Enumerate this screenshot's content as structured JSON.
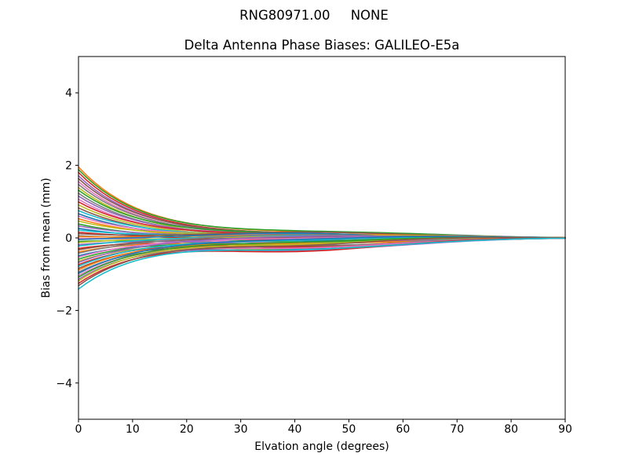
{
  "chart_data": {
    "type": "line",
    "suptitle": "RNG80971.00     NONE",
    "title": "Delta Antenna Phase Biases: GALILEO-E5a",
    "xlabel": "Elvation angle (degrees)",
    "ylabel": "Bias from mean (mm)",
    "xlim": [
      0,
      90
    ],
    "ylim": [
      -5,
      5
    ],
    "xticks": [
      0,
      10,
      20,
      30,
      40,
      50,
      60,
      70,
      80,
      90
    ],
    "xticklabels": [
      "0",
      "10",
      "20",
      "30",
      "40",
      "50",
      "60",
      "70",
      "80",
      "90"
    ],
    "yticks": [
      -4,
      -2,
      0,
      2,
      4
    ],
    "yticklabels": [
      "−4",
      "−2",
      "0",
      "2",
      "4"
    ],
    "grid": false,
    "legend": "none",
    "background": "#ffffff",
    "axes_color": "#000000",
    "palette": [
      "#1f77b4",
      "#ff7f0e",
      "#2ca02c",
      "#d62728",
      "#9467bd",
      "#8c564b",
      "#e377c2",
      "#7f7f7f",
      "#bcbd22",
      "#17becf"
    ],
    "model": {
      "x_step": 1.5,
      "decay_tau": 12,
      "bumps": [
        {
          "center": 40,
          "sigma": 16
        },
        {
          "center": 63,
          "sigma": 13
        }
      ]
    },
    "series_format": [
      "start_bias_mm_at_0deg",
      "palette_color_index",
      "bump40_amplitude_mm",
      "bump63_amplitude_mm"
    ],
    "series": [
      [
        1.95,
        1,
        0.1,
        0.05
      ],
      [
        1.88,
        2,
        0.12,
        0.06
      ],
      [
        1.8,
        3,
        0.06,
        0.02
      ],
      [
        1.71,
        4,
        0.02,
        0.04
      ],
      [
        1.63,
        5,
        0.08,
        -0.02
      ],
      [
        1.55,
        6,
        0.0,
        0.03
      ],
      [
        1.47,
        7,
        0.05,
        0.05
      ],
      [
        1.39,
        8,
        -0.04,
        0.02
      ],
      [
        1.31,
        2,
        0.09,
        0.0
      ],
      [
        1.23,
        7,
        -0.02,
        -0.03
      ],
      [
        1.15,
        4,
        0.04,
        0.06
      ],
      [
        1.07,
        6,
        -0.06,
        0.01
      ],
      [
        0.99,
        3,
        0.07,
        -0.04
      ],
      [
        0.91,
        8,
        0.0,
        0.05
      ],
      [
        0.83,
        5,
        -0.08,
        -0.02
      ],
      [
        0.75,
        9,
        0.03,
        0.03
      ],
      [
        0.67,
        0,
        -0.1,
        0.0
      ],
      [
        0.6,
        6,
        0.06,
        -0.05
      ],
      [
        0.53,
        1,
        -0.03,
        0.04
      ],
      [
        0.46,
        8,
        0.1,
        0.02
      ],
      [
        0.39,
        2,
        -0.12,
        -0.04
      ],
      [
        0.33,
        4,
        0.05,
        0.06
      ],
      [
        0.27,
        0,
        -0.16,
        0.01
      ],
      [
        0.21,
        9,
        0.12,
        -0.02
      ],
      [
        0.16,
        3,
        -0.07,
        0.05
      ],
      [
        0.11,
        5,
        0.15,
        0.03
      ],
      [
        0.07,
        7,
        -0.2,
        -0.05
      ],
      [
        0.03,
        1,
        0.08,
        0.04
      ],
      [
        -0.01,
        6,
        -0.13,
        0.02
      ],
      [
        -0.05,
        0,
        0.14,
        -0.03
      ],
      [
        -0.09,
        2,
        -0.22,
        -0.06
      ],
      [
        -0.13,
        8,
        0.04,
        0.05
      ],
      [
        -0.18,
        4,
        -0.17,
        0.0
      ],
      [
        -0.23,
        9,
        0.09,
        -0.05
      ],
      [
        -0.28,
        3,
        -0.25,
        -0.03
      ],
      [
        -0.33,
        5,
        0.02,
        0.04
      ],
      [
        -0.38,
        1,
        -0.19,
        0.06
      ],
      [
        -0.43,
        7,
        0.11,
        -0.02
      ],
      [
        -0.48,
        0,
        -0.28,
        -0.05
      ],
      [
        -0.53,
        6,
        0.0,
        0.03
      ],
      [
        -0.58,
        2,
        -0.15,
        0.05
      ],
      [
        -0.63,
        8,
        -0.3,
        -0.04
      ],
      [
        -0.68,
        4,
        0.06,
        0.02
      ],
      [
        -0.73,
        3,
        -0.21,
        -0.06
      ],
      [
        -0.78,
        9,
        -0.05,
        0.04
      ],
      [
        -0.83,
        5,
        -0.26,
        0.0
      ],
      [
        -0.88,
        1,
        -0.11,
        -0.05
      ],
      [
        -0.93,
        7,
        -0.32,
        0.02
      ],
      [
        -0.98,
        0,
        -0.02,
        0.05
      ],
      [
        -1.03,
        6,
        -0.24,
        -0.03
      ],
      [
        -1.08,
        2,
        -0.09,
        0.03
      ],
      [
        -1.13,
        4,
        -0.29,
        -0.06
      ],
      [
        -1.18,
        8,
        -0.14,
        0.02
      ],
      [
        -1.24,
        3,
        -0.33,
        -0.02
      ],
      [
        -1.31,
        5,
        -0.18,
        0.04
      ],
      [
        -1.4,
        9,
        -0.27,
        -0.05
      ]
    ]
  }
}
